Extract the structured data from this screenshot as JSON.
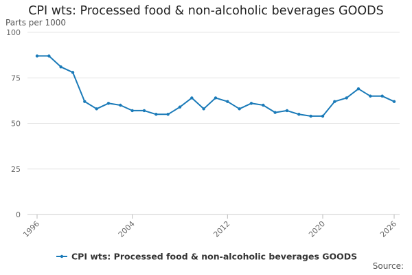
{
  "chart_data": {
    "type": "line",
    "title": "CPI wts: Processed food & non-alcoholic beverages GOODS",
    "ylabel": "Parts per 1000",
    "xlabel": "",
    "ylim": [
      0,
      100
    ],
    "yticks": [
      0,
      25,
      50,
      75,
      100
    ],
    "xlim": [
      1996,
      2026
    ],
    "xticks": [
      1996,
      2004,
      2012,
      2020,
      2026
    ],
    "grid": true,
    "legend_position": "bottom",
    "color": "#1a7ab8",
    "series": [
      {
        "name": "CPI wts: Processed food & non-alcoholic beverages GOODS",
        "x": [
          1996,
          1997,
          1998,
          1999,
          2000,
          2001,
          2002,
          2003,
          2004,
          2005,
          2006,
          2007,
          2008,
          2009,
          2010,
          2011,
          2012,
          2013,
          2014,
          2015,
          2016,
          2017,
          2018,
          2019,
          2020,
          2021,
          2022,
          2023,
          2024,
          2025,
          2026
        ],
        "values": [
          87,
          87,
          81,
          78,
          62,
          58,
          61,
          60,
          57,
          57,
          55,
          55,
          59,
          64,
          58,
          64,
          62,
          58,
          61,
          60,
          56,
          57,
          55,
          54,
          54,
          62,
          64,
          69,
          65,
          65,
          62
        ]
      }
    ],
    "source_label": "Source:"
  }
}
